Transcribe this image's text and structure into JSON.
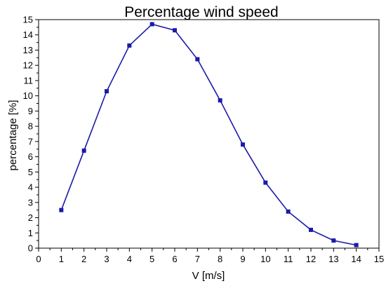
{
  "chart_data": {
    "type": "line",
    "title": "Percentage wind speed",
    "xlabel": "V [m/s]",
    "ylabel": "percentage [%]",
    "xlim": [
      0,
      15
    ],
    "ylim": [
      0,
      15
    ],
    "x_ticks": [
      0,
      1,
      2,
      3,
      4,
      5,
      6,
      7,
      8,
      9,
      10,
      11,
      12,
      13,
      14,
      15
    ],
    "y_ticks": [
      0,
      1,
      2,
      3,
      4,
      5,
      6,
      7,
      8,
      9,
      10,
      11,
      12,
      13,
      14,
      15
    ],
    "grid": false,
    "series": [
      {
        "x": [
          1,
          2,
          3,
          4,
          5,
          6,
          7,
          8,
          9,
          10,
          11,
          12,
          13,
          14
        ],
        "y": [
          2.5,
          6.4,
          10.3,
          13.3,
          14.7,
          14.3,
          12.4,
          9.7,
          6.8,
          4.3,
          2.4,
          1.2,
          0.5,
          0.2
        ]
      }
    ],
    "colors": {
      "line": "#1a1aa8",
      "marker": "#1a1aa8",
      "axis": "#000000"
    }
  }
}
